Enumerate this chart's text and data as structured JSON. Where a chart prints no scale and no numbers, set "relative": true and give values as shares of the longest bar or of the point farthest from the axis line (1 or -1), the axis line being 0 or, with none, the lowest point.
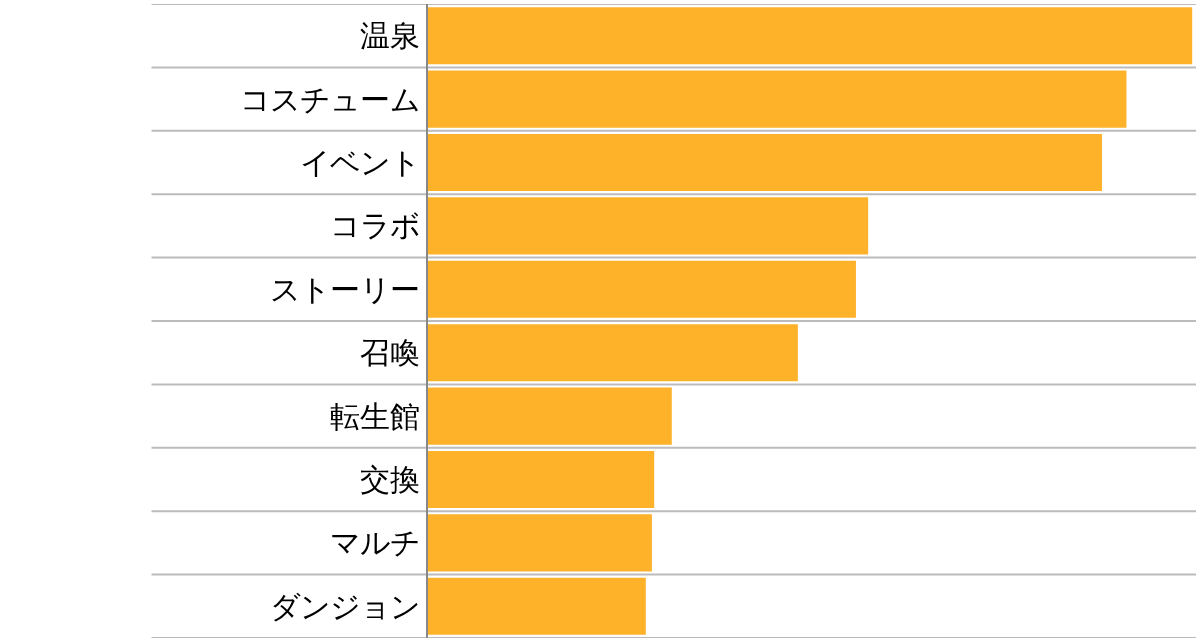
{
  "chart_data": {
    "type": "bar",
    "orientation": "horizontal",
    "relative": true,
    "categories": [
      "温泉",
      "コスチューム",
      "イベント",
      "コラボ",
      "ストーリー",
      "召喚",
      "転生館",
      "交換",
      "マルチ",
      "ダンジョン"
    ],
    "values": [
      1,
      0.914,
      0.882,
      0.576,
      0.56,
      0.484,
      0.319,
      0.296,
      0.293,
      0.285
    ],
    "color": "#fdb22a",
    "grid": "y",
    "legend": false
  }
}
